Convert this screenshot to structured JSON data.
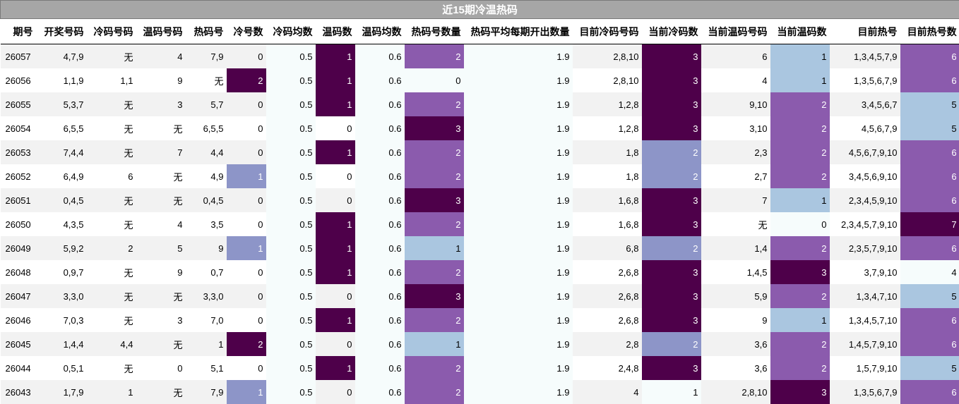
{
  "title": "近15期冷温热码",
  "headers": [
    "期号",
    "开奖号码",
    "冷码号码",
    "温码号码",
    "热码号",
    "冷号数",
    "冷码均数",
    "温码数",
    "温码均数",
    "热码号数量",
    "热码平均每期开出数量",
    "目前冷码号码",
    "当前冷码数",
    "当前温码号码",
    "当前温码数",
    "目前热号",
    "目前热号数"
  ],
  "rows": [
    [
      "26057",
      "4,7,9",
      "无",
      "4",
      "7,9",
      "0",
      "0.5",
      "1",
      "0.6",
      "2",
      "1.9",
      "2,8,10",
      "3",
      "6",
      "1",
      "1,3,4,5,7,9",
      "6"
    ],
    [
      "26056",
      "1,1,9",
      "1,1",
      "9",
      "无",
      "2",
      "0.5",
      "1",
      "0.6",
      "0",
      "1.9",
      "2,8,10",
      "3",
      "4",
      "1",
      "1,3,5,6,7,9",
      "6"
    ],
    [
      "26055",
      "5,3,7",
      "无",
      "3",
      "5,7",
      "0",
      "0.5",
      "1",
      "0.6",
      "2",
      "1.9",
      "1,2,8",
      "3",
      "9,10",
      "2",
      "3,4,5,6,7",
      "5"
    ],
    [
      "26054",
      "6,5,5",
      "无",
      "无",
      "6,5,5",
      "0",
      "0.5",
      "0",
      "0.6",
      "3",
      "1.9",
      "1,2,8",
      "3",
      "3,10",
      "2",
      "4,5,6,7,9",
      "5"
    ],
    [
      "26053",
      "7,4,4",
      "无",
      "7",
      "4,4",
      "0",
      "0.5",
      "1",
      "0.6",
      "2",
      "1.9",
      "1,8",
      "2",
      "2,3",
      "2",
      "4,5,6,7,9,10",
      "6"
    ],
    [
      "26052",
      "6,4,9",
      "6",
      "无",
      "4,9",
      "1",
      "0.5",
      "0",
      "0.6",
      "2",
      "1.9",
      "1,8",
      "2",
      "2,7",
      "2",
      "3,4,5,6,9,10",
      "6"
    ],
    [
      "26051",
      "0,4,5",
      "无",
      "无",
      "0,4,5",
      "0",
      "0.5",
      "0",
      "0.6",
      "3",
      "1.9",
      "1,6,8",
      "3",
      "7",
      "1",
      "2,3,4,5,9,10",
      "6"
    ],
    [
      "26050",
      "4,3,5",
      "无",
      "4",
      "3,5",
      "0",
      "0.5",
      "1",
      "0.6",
      "2",
      "1.9",
      "1,6,8",
      "3",
      "无",
      "0",
      "2,3,4,5,7,9,10",
      "7"
    ],
    [
      "26049",
      "5,9,2",
      "2",
      "5",
      "9",
      "1",
      "0.5",
      "1",
      "0.6",
      "1",
      "1.9",
      "6,8",
      "2",
      "1,4",
      "2",
      "2,3,5,7,9,10",
      "6"
    ],
    [
      "26048",
      "0,9,7",
      "无",
      "9",
      "0,7",
      "0",
      "0.5",
      "1",
      "0.6",
      "2",
      "1.9",
      "2,6,8",
      "3",
      "1,4,5",
      "3",
      "3,7,9,10",
      "4"
    ],
    [
      "26047",
      "3,3,0",
      "无",
      "无",
      "3,3,0",
      "0",
      "0.5",
      "0",
      "0.6",
      "3",
      "1.9",
      "2,6,8",
      "3",
      "5,9",
      "2",
      "1,3,4,7,10",
      "5"
    ],
    [
      "26046",
      "7,0,3",
      "无",
      "3",
      "7,0",
      "0",
      "0.5",
      "1",
      "0.6",
      "2",
      "1.9",
      "2,6,8",
      "3",
      "9",
      "1",
      "1,3,4,5,7,10",
      "6"
    ],
    [
      "26045",
      "1,4,4",
      "4,4",
      "无",
      "1",
      "2",
      "0.5",
      "0",
      "0.6",
      "1",
      "1.9",
      "2,8",
      "2",
      "3,6",
      "2",
      "1,4,5,7,9,10",
      "6"
    ],
    [
      "26044",
      "0,5,1",
      "无",
      "0",
      "5,1",
      "0",
      "0.5",
      "1",
      "0.6",
      "2",
      "1.9",
      "2,4,8",
      "3",
      "3,6",
      "2",
      "1,5,7,9,10",
      "5"
    ],
    [
      "26043",
      "1,7,9",
      "1",
      "无",
      "7,9",
      "1",
      "0.5",
      "0",
      "0.6",
      "2",
      "1.9",
      "4",
      "1",
      "2,8,10",
      "3",
      "1,3,5,6,7,9",
      "6"
    ]
  ],
  "colors": {
    "level_0": "#f6fcfc",
    "level_1": "#aac6e0",
    "level_2": "#8b5bad",
    "level_3": "#4e004a",
    "cold_1": "#8d95c8",
    "title_bg": "#a6a6a6"
  }
}
